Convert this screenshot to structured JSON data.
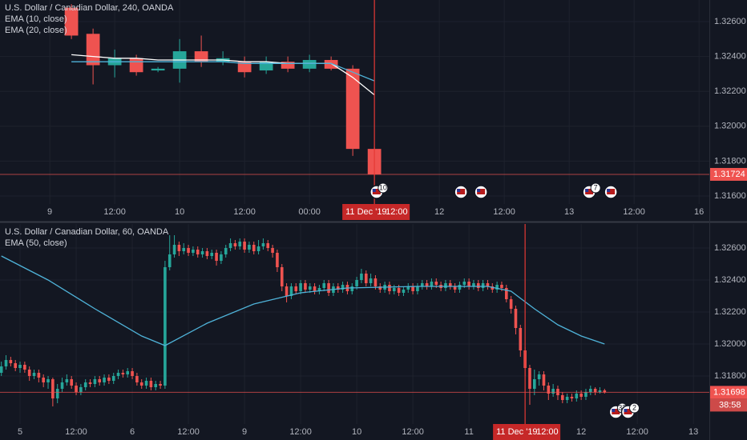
{
  "chart_data": [
    {
      "type": "candlestick",
      "title": "U.S. Dollar / Canadian Dollar, 240, OANDA",
      "up_color": "#26a69a",
      "down_color": "#ef5350",
      "x": [
        4,
        8,
        12,
        16,
        20,
        24,
        28,
        32,
        36,
        40,
        44,
        48,
        52,
        56,
        60
      ],
      "open": [
        1.3268,
        1.3253,
        1.3235,
        1.3239,
        1.3232,
        1.3233,
        1.3243,
        1.3237,
        1.3237,
        1.3232,
        1.3237,
        1.3233,
        1.3238,
        1.3233,
        1.3187
      ],
      "high": [
        1.327,
        1.3256,
        1.3244,
        1.3241,
        1.3234,
        1.325,
        1.3252,
        1.3243,
        1.324,
        1.324,
        1.324,
        1.3241,
        1.324,
        1.3235,
        1.3188
      ],
      "low": [
        1.325,
        1.3224,
        1.3228,
        1.3229,
        1.3231,
        1.3225,
        1.3234,
        1.3235,
        1.3228,
        1.323,
        1.3231,
        1.3231,
        1.3232,
        1.3183,
        1.31724
      ],
      "close": [
        1.3252,
        1.3235,
        1.3239,
        1.3231,
        1.3233,
        1.3243,
        1.3237,
        1.3239,
        1.3231,
        1.3237,
        1.3233,
        1.3238,
        1.3233,
        1.3187,
        1.31724
      ],
      "series": [
        {
          "name": "EMA (10, close)",
          "color": "#ffffff",
          "x": [
            4,
            8,
            12,
            16,
            20,
            24,
            28,
            32,
            36,
            40,
            44,
            48,
            52,
            56,
            60
          ],
          "values": [
            1.3241,
            1.324,
            1.3239,
            1.3239,
            1.3238,
            1.3238,
            1.3238,
            1.3238,
            1.3237,
            1.3237,
            1.3236,
            1.3236,
            1.3236,
            1.3228,
            1.3218
          ]
        },
        {
          "name": "EMA (20, close)",
          "color": "#4fb3d9",
          "x": [
            4,
            8,
            12,
            16,
            20,
            24,
            28,
            32,
            36,
            40,
            44,
            48,
            52,
            56,
            60
          ],
          "values": [
            1.3237,
            1.3237,
            1.3237,
            1.3237,
            1.3237,
            1.3237,
            1.3237,
            1.3237,
            1.3236,
            1.3236,
            1.3236,
            1.3236,
            1.3236,
            1.3231,
            1.3226
          ]
        }
      ],
      "xlim": [
        -9.2,
        121.9
      ],
      "xticks": [
        {
          "value": 0,
          "label": "9"
        },
        {
          "value": 12,
          "label": "12:00"
        },
        {
          "value": 24,
          "label": "10"
        },
        {
          "value": 36,
          "label": "12:00"
        },
        {
          "value": 48,
          "label": "00:00"
        },
        {
          "value": 72,
          "label": "12"
        },
        {
          "value": 84,
          "label": "12:00"
        },
        {
          "value": 96,
          "label": "13"
        },
        {
          "value": 108,
          "label": "12:00"
        },
        {
          "value": 120,
          "label": "16"
        }
      ],
      "ylim": [
        1.31554,
        1.32724
      ],
      "yticks": [
        {
          "value": 1.316,
          "label": "1.31600"
        },
        {
          "value": 1.318,
          "label": "1.31800"
        },
        {
          "value": 1.32,
          "label": "1.32000"
        },
        {
          "value": 1.322,
          "label": "1.32200"
        },
        {
          "value": 1.324,
          "label": "1.32400"
        },
        {
          "value": 1.326,
          "label": "1.32600"
        }
      ],
      "grid": true,
      "last_price": {
        "value": 1.31724,
        "label": "1.31724"
      },
      "crosshair": {
        "x": 60,
        "date": "11 Dec '19",
        "time": "12:00"
      },
      "events": [
        {
          "x": 60.4,
          "label": "10"
        },
        {
          "x": 76
        },
        {
          "x": 79.7
        },
        {
          "x": 99.7,
          "label": "7"
        },
        {
          "x": 103.7
        }
      ]
    },
    {
      "type": "candlestick",
      "title": "U.S. Dollar / Canadian Dollar, 60, OANDA",
      "up_color": "#26a69a",
      "down_color": "#ef5350",
      "x": [
        -4,
        -3,
        -2,
        -1,
        0,
        1,
        2,
        3,
        4,
        5,
        6,
        7,
        8,
        9,
        10,
        11,
        12,
        13,
        14,
        15,
        16,
        17,
        18,
        19,
        20,
        21,
        22,
        23,
        24,
        25,
        26,
        27,
        28,
        29,
        30,
        31,
        32,
        33,
        34,
        35,
        36,
        37,
        38,
        39,
        40,
        41,
        42,
        43,
        44,
        45,
        46,
        47,
        48,
        49,
        50,
        51,
        52,
        53,
        54,
        55,
        56,
        57,
        58,
        59,
        60,
        61,
        62,
        63,
        64,
        65,
        66,
        67,
        68,
        69,
        70,
        71,
        72,
        73,
        74,
        75,
        76,
        77,
        78,
        79,
        80,
        81,
        82,
        83,
        84,
        85,
        86,
        87,
        88,
        89,
        90,
        91,
        92,
        93,
        94,
        95,
        96,
        97,
        98,
        99,
        100,
        101,
        102,
        103,
        104,
        105,
        106,
        107,
        108,
        109,
        110,
        111,
        112,
        113,
        114,
        115,
        116,
        117,
        118,
        119,
        120,
        121,
        122,
        123,
        124,
        125
      ],
      "open": [
        1.3182,
        1.3186,
        1.319,
        1.3188,
        1.3185,
        1.3187,
        1.3184,
        1.318,
        1.3182,
        1.3179,
        1.3176,
        1.3178,
        1.3166,
        1.3172,
        1.3176,
        1.3178,
        1.3174,
        1.317,
        1.3173,
        1.3176,
        1.3175,
        1.3178,
        1.3176,
        1.3179,
        1.3177,
        1.318,
        1.3182,
        1.3181,
        1.3183,
        1.318,
        1.3176,
        1.3174,
        1.3177,
        1.3173,
        1.3175,
        1.3174,
        1.3248,
        1.3256,
        1.3262,
        1.3258,
        1.326,
        1.3257,
        1.3259,
        1.3256,
        1.3258,
        1.3255,
        1.3257,
        1.3252,
        1.3256,
        1.326,
        1.3263,
        1.3261,
        1.3264,
        1.3259,
        1.3262,
        1.3258,
        1.3261,
        1.3263,
        1.326,
        1.3257,
        1.3248,
        1.3236,
        1.323,
        1.3236,
        1.3233,
        1.3238,
        1.3234,
        1.3236,
        1.3233,
        1.3235,
        1.3238,
        1.3232,
        1.3236,
        1.3234,
        1.3237,
        1.3233,
        1.3236,
        1.324,
        1.3244,
        1.3238,
        1.3241,
        1.3236,
        1.3234,
        1.3237,
        1.3233,
        1.3235,
        1.3232,
        1.3234,
        1.3236,
        1.3233,
        1.3236,
        1.3238,
        1.3236,
        1.3239,
        1.3237,
        1.3235,
        1.3238,
        1.3236,
        1.3234,
        1.3237,
        1.3239,
        1.3236,
        1.3238,
        1.3235,
        1.3238,
        1.3236,
        1.3234,
        1.3237,
        1.3235,
        1.3228,
        1.3222,
        1.321,
        1.3196,
        1.3185,
        1.3172,
        1.3178,
        1.3181,
        1.3174,
        1.3169,
        1.3172,
        1.3168,
        1.3165,
        1.3167,
        1.3166,
        1.3169,
        1.3167,
        1.317,
        1.3172,
        1.317,
        1.3171
      ],
      "high": [
        1.3189,
        1.3193,
        1.3192,
        1.319,
        1.3189,
        1.3189,
        1.3186,
        1.3184,
        1.3184,
        1.3181,
        1.318,
        1.3179,
        1.3175,
        1.3179,
        1.3181,
        1.318,
        1.3176,
        1.3175,
        1.3178,
        1.3178,
        1.318,
        1.318,
        1.3181,
        1.3181,
        1.3182,
        1.3184,
        1.3184,
        1.3185,
        1.3185,
        1.3182,
        1.3178,
        1.3179,
        1.3179,
        1.3177,
        1.3177,
        1.3252,
        1.3268,
        1.3268,
        1.3264,
        1.3263,
        1.3262,
        1.3261,
        1.3261,
        1.326,
        1.326,
        1.3259,
        1.3259,
        1.3258,
        1.3262,
        1.3266,
        1.3265,
        1.3266,
        1.3266,
        1.3264,
        1.3264,
        1.3265,
        1.3266,
        1.3265,
        1.3262,
        1.3259,
        1.325,
        1.3238,
        1.3238,
        1.3238,
        1.324,
        1.324,
        1.3238,
        1.3238,
        1.3237,
        1.324,
        1.324,
        1.3238,
        1.3238,
        1.3239,
        1.3239,
        1.3238,
        1.3242,
        1.3247,
        1.3246,
        1.3244,
        1.3243,
        1.3238,
        1.3239,
        1.3239,
        1.3237,
        1.3237,
        1.3236,
        1.3238,
        1.3238,
        1.3238,
        1.324,
        1.324,
        1.3241,
        1.3241,
        1.3239,
        1.324,
        1.324,
        1.3238,
        1.3239,
        1.3241,
        1.3241,
        1.324,
        1.324,
        1.324,
        1.324,
        1.3238,
        1.3239,
        1.3239,
        1.3237,
        1.323,
        1.3224,
        1.3212,
        1.3198,
        1.3187,
        1.3184,
        1.3183,
        1.3183,
        1.3176,
        1.3175,
        1.3174,
        1.317,
        1.3169,
        1.3169,
        1.3171,
        1.3171,
        1.3172,
        1.3174,
        1.3173,
        1.3173,
        1.3172
      ],
      "low": [
        1.318,
        1.3184,
        1.3186,
        1.3183,
        1.3182,
        1.3182,
        1.3177,
        1.3178,
        1.3176,
        1.3173,
        1.3172,
        1.3161,
        1.3163,
        1.317,
        1.3174,
        1.3172,
        1.3168,
        1.3168,
        1.3171,
        1.3173,
        1.3173,
        1.3174,
        1.3174,
        1.3175,
        1.3175,
        1.3178,
        1.3179,
        1.3179,
        1.3178,
        1.3174,
        1.3172,
        1.3172,
        1.3171,
        1.3171,
        1.3172,
        1.3172,
        1.3246,
        1.3254,
        1.3255,
        1.3256,
        1.3255,
        1.3255,
        1.3254,
        1.3254,
        1.3253,
        1.3253,
        1.3249,
        1.325,
        1.3254,
        1.3258,
        1.3259,
        1.3259,
        1.3257,
        1.3257,
        1.3256,
        1.3256,
        1.3259,
        1.3258,
        1.3254,
        1.3245,
        1.3233,
        1.3226,
        1.3228,
        1.3231,
        1.3231,
        1.3232,
        1.3232,
        1.3231,
        1.3231,
        1.3233,
        1.323,
        1.323,
        1.3232,
        1.3232,
        1.3231,
        1.3231,
        1.3234,
        1.3238,
        1.3236,
        1.3236,
        1.3234,
        1.3232,
        1.3232,
        1.3231,
        1.3231,
        1.323,
        1.323,
        1.3232,
        1.3231,
        1.3231,
        1.3234,
        1.3234,
        1.3234,
        1.3235,
        1.3233,
        1.3233,
        1.3234,
        1.3232,
        1.3232,
        1.3235,
        1.3234,
        1.3234,
        1.3233,
        1.3233,
        1.3234,
        1.3232,
        1.3232,
        1.3233,
        1.3226,
        1.3219,
        1.3206,
        1.3192,
        1.318,
        1.3162,
        1.3168,
        1.3174,
        1.3171,
        1.3165,
        1.3167,
        1.3165,
        1.3163,
        1.3163,
        1.3164,
        1.3164,
        1.3165,
        1.3165,
        1.3168,
        1.3168,
        1.3169,
        1.3169
      ],
      "close": [
        1.3186,
        1.319,
        1.3188,
        1.3185,
        1.3187,
        1.3184,
        1.318,
        1.3182,
        1.3179,
        1.3176,
        1.3178,
        1.3166,
        1.3172,
        1.3176,
        1.3178,
        1.3174,
        1.317,
        1.3173,
        1.3176,
        1.3175,
        1.3178,
        1.3176,
        1.3179,
        1.3177,
        1.318,
        1.3182,
        1.3181,
        1.3183,
        1.318,
        1.3176,
        1.3174,
        1.3177,
        1.3173,
        1.3175,
        1.3174,
        1.3248,
        1.3256,
        1.3262,
        1.3258,
        1.326,
        1.3257,
        1.3259,
        1.3256,
        1.3258,
        1.3255,
        1.3257,
        1.3252,
        1.3256,
        1.326,
        1.3263,
        1.3261,
        1.3264,
        1.3259,
        1.3262,
        1.3258,
        1.3261,
        1.3263,
        1.326,
        1.3257,
        1.3248,
        1.3236,
        1.323,
        1.3236,
        1.3233,
        1.3238,
        1.3234,
        1.3236,
        1.3233,
        1.3235,
        1.3238,
        1.3232,
        1.3236,
        1.3234,
        1.3237,
        1.3233,
        1.3236,
        1.324,
        1.3244,
        1.3238,
        1.3241,
        1.3236,
        1.3234,
        1.3237,
        1.3233,
        1.3235,
        1.3232,
        1.3234,
        1.3236,
        1.3233,
        1.3236,
        1.3238,
        1.3236,
        1.3239,
        1.3237,
        1.3235,
        1.3238,
        1.3236,
        1.3234,
        1.3237,
        1.3239,
        1.3236,
        1.3238,
        1.3235,
        1.3238,
        1.3236,
        1.3234,
        1.3237,
        1.3235,
        1.3228,
        1.3222,
        1.321,
        1.3196,
        1.3185,
        1.3172,
        1.3178,
        1.3181,
        1.3174,
        1.3169,
        1.3172,
        1.3168,
        1.3165,
        1.3167,
        1.3166,
        1.3169,
        1.3167,
        1.317,
        1.3172,
        1.317,
        1.3171,
        1.31698
      ],
      "series": [
        {
          "name": "EMA (50, close)",
          "color": "#4fb3d9",
          "x": [
            -4,
            6,
            16,
            26,
            31,
            40,
            50,
            60,
            70,
            85,
            100,
            105,
            110,
            115,
            120,
            125
          ],
          "values": [
            1.3255,
            1.324,
            1.3222,
            1.3205,
            1.3199,
            1.3213,
            1.3225,
            1.3232,
            1.3235,
            1.3236,
            1.3236,
            1.3233,
            1.3222,
            1.3212,
            1.3205,
            1.32
          ]
        }
      ],
      "xlim": [
        -4.29,
        147.4
      ],
      "xticks": [
        {
          "value": 0,
          "label": "5"
        },
        {
          "value": 12,
          "label": "12:00"
        },
        {
          "value": 24,
          "label": "6"
        },
        {
          "value": 36,
          "label": "12:00"
        },
        {
          "value": 48,
          "label": "9"
        },
        {
          "value": 60,
          "label": "12:00"
        },
        {
          "value": 72,
          "label": "10"
        },
        {
          "value": 84,
          "label": "12:00"
        },
        {
          "value": 96,
          "label": "11"
        },
        {
          "value": 120,
          "label": "12"
        },
        {
          "value": 132,
          "label": "12:00"
        },
        {
          "value": 144,
          "label": "13"
        }
      ],
      "ylim": [
        1.315,
        1.3275
      ],
      "yticks": [
        {
          "value": 1.318,
          "label": "1.31800"
        },
        {
          "value": 1.32,
          "label": "1.32000"
        },
        {
          "value": 1.322,
          "label": "1.32200"
        },
        {
          "value": 1.324,
          "label": "1.32400"
        },
        {
          "value": 1.326,
          "label": "1.32600"
        }
      ],
      "grid": true,
      "last_price": {
        "value": 1.31698,
        "label": "1.31698",
        "countdown": "38:58"
      },
      "crosshair": {
        "x": 108,
        "date": "11 Dec '19",
        "time": "12:00"
      },
      "events": [
        {
          "x": 127.4,
          "label": "33"
        },
        {
          "x": 130,
          "label": "2"
        }
      ]
    }
  ]
}
